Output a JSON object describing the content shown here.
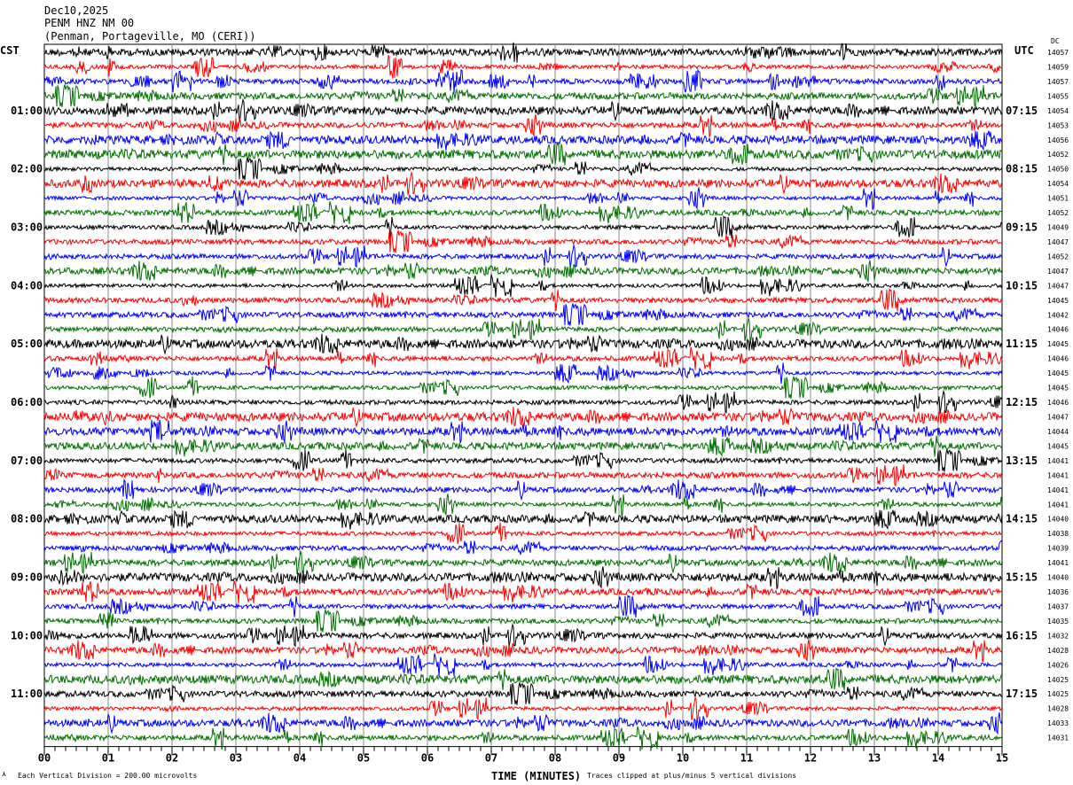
{
  "header": {
    "date": "Dec10,2025",
    "station": "PENM HNZ NM 00",
    "location": "(Penman, Portageville, MO (CERI))"
  },
  "chart_data": {
    "type": "line",
    "title": "Dec10,2025",
    "xlabel": "TIME (MINUTES)",
    "xlim": [
      0,
      15
    ],
    "x_ticks": [
      "00",
      "01",
      "02",
      "03",
      "04",
      "05",
      "06",
      "07",
      "08",
      "09",
      "10",
      "11",
      "12",
      "13",
      "14",
      "15"
    ],
    "left_timezone": "CST",
    "right_timezone": "UTC",
    "dc_header": "DC",
    "left_hour_labels": [
      "",
      "01:00",
      "02:00",
      "03:00",
      "04:00",
      "05:00",
      "06:00",
      "07:00",
      "08:00",
      "09:00",
      "10:00",
      "11:00"
    ],
    "right_hour_labels": [
      "",
      "07:15",
      "08:15",
      "09:15",
      "10:15",
      "11:15",
      "12:15",
      "13:15",
      "14:15",
      "15:15",
      "16:15",
      "17:15"
    ],
    "traces_per_hour": 4,
    "trace_count": 48,
    "trace_colors": [
      "#000000",
      "#ff0000",
      "#0000ff",
      "#007000"
    ],
    "dc_offsets": [
      14057,
      14059,
      14057,
      14055,
      14054,
      14053,
      14056,
      14052,
      14050,
      14054,
      14051,
      14052,
      14049,
      14047,
      14052,
      14047,
      14047,
      14045,
      14042,
      14046,
      14045,
      14046,
      14045,
      14045,
      14046,
      14047,
      14044,
      14045,
      14041,
      14041,
      14041,
      14041,
      14040,
      14038,
      14039,
      14041,
      14040,
      14036,
      14037,
      14035,
      14032,
      14028,
      14026,
      14025,
      14025,
      14028,
      14033,
      14031
    ],
    "scale_note": "Each Vertical Division =  200.00 microvolts",
    "clip_note": "Traces clipped at plus/minus 5 vertical divisions",
    "grid": true
  }
}
